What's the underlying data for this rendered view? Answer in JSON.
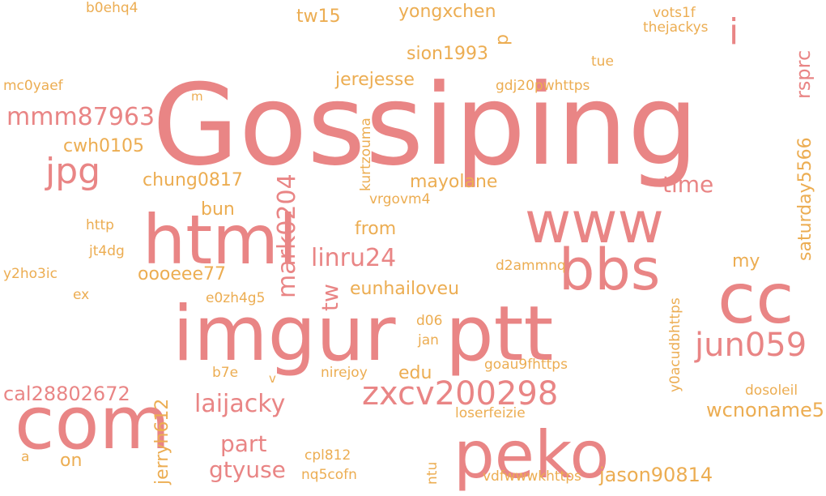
{
  "colors": {
    "pink": "#e98585",
    "orange": "#ecad52",
    "background": "#ffffff"
  },
  "words": {
    "gossiping": "Gossiping",
    "imgur": "imgur",
    "ptt": "ptt",
    "com": "com",
    "html": "html",
    "cc": "cc",
    "peko": "peko",
    "www": "www",
    "bbs": "bbs",
    "zxcv200298": "zxcv200298",
    "jun059": "jun059",
    "jpg": "jpg",
    "mmm87963": "mmm87963",
    "laijacky": "laijacky",
    "linru24": "linru24",
    "gtyuse": "gtyuse",
    "mark0204": "mark0204",
    "part": "part",
    "time": "time",
    "jason90814": "jason90814",
    "wcnoname5": "wcnoname5",
    "cal28802672": "cal28802672",
    "jerryh612": "jerryh612",
    "saturday5566": "saturday5566",
    "rsprc": "rsprc",
    "i": "i",
    "p": "p",
    "tw": "tw",
    "tw15": "tw15",
    "yongxchen": "yongxchen",
    "sion1993": "sion1993",
    "jerejesse": "jerejesse",
    "chung0817": "chung0817",
    "mayolane": "mayolane",
    "oooeee77": "oooeee77",
    "eunhailoveu": "eunhailoveu",
    "cwh0105": "cwh0105",
    "from": "from",
    "bun": "bun",
    "my": "my",
    "edu": "edu",
    "on": "on",
    "b0ehq4": "b0ehq4",
    "vots1f": "vots1f",
    "thejackys": "thejackys",
    "tue": "tue",
    "mc0yaef": "mc0yaef",
    "gdj20pwhttps": "gdj20pwhttps",
    "kurtzouma": "kurtzouma",
    "vrgovm4": "vrgovm4",
    "http": "http",
    "jt4dg": "jt4dg",
    "y2ho3ic": "y2ho3ic",
    "d2ammnq": "d2ammnq",
    "ex": "ex",
    "e0zh4g5": "e0zh4g5",
    "d06": "d06",
    "jan": "jan",
    "goau9fhttps": "goau9fhttps",
    "y0acudbhttps": "y0acudbhttps",
    "b7e": "b7e",
    "nirejoy": "nirejoy",
    "dosoleil": "dosoleil",
    "loserfeizie": "loserfeizie",
    "cpl812": "cpl812",
    "nq5cofn": "nq5cofn",
    "ntu": "ntu",
    "vdfwwwkhttps": "vdfwwwkhttps",
    "a": "a",
    "m": "m",
    "v": "v"
  }
}
